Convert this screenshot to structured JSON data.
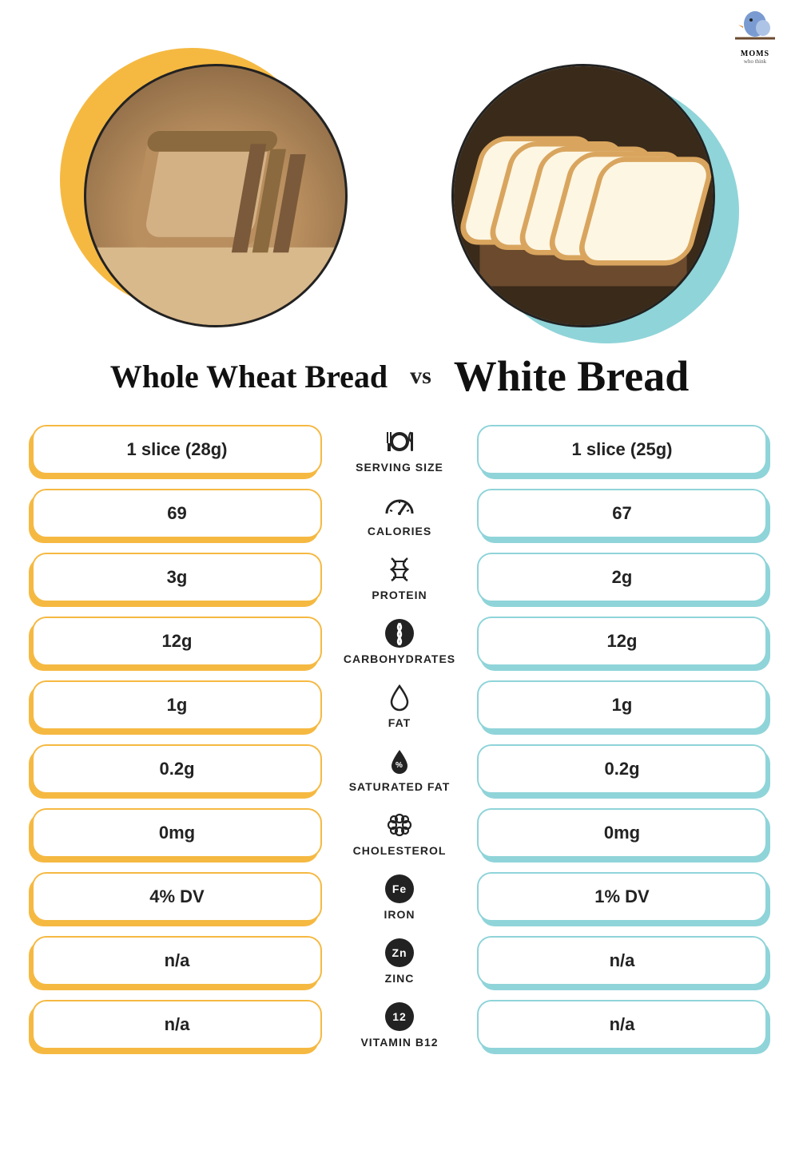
{
  "colors": {
    "left_accent": "#f5b942",
    "right_accent": "#8fd4d9",
    "text": "#222222",
    "background": "#ffffff"
  },
  "logo": {
    "brand": "MOMS",
    "tagline": "who think"
  },
  "titles": {
    "left": "Whole Wheat Bread",
    "vs": "vs",
    "right": "White Bread",
    "left_fontsize": 40,
    "right_fontsize": 54
  },
  "rows": [
    {
      "label": "SERVING SIZE",
      "icon": "plate",
      "left": "1 slice (28g)",
      "right": "1 slice (25g)"
    },
    {
      "label": "CALORIES",
      "icon": "gauge",
      "left": "69",
      "right": "67"
    },
    {
      "label": "PROTEIN",
      "icon": "dna",
      "left": "3g",
      "right": "2g"
    },
    {
      "label": "CARBOHYDRATES",
      "icon": "wheat-badge",
      "left": "12g",
      "right": "12g"
    },
    {
      "label": "FAT",
      "icon": "drop",
      "left": "1g",
      "right": "1g"
    },
    {
      "label": "SATURATED FAT",
      "icon": "drop-fill",
      "left": "0.2g",
      "right": "0.2g"
    },
    {
      "label": "CHOLESTEROL",
      "icon": "molecule",
      "left": "0mg",
      "right": "0mg"
    },
    {
      "label": "IRON",
      "icon": "badge-Fe",
      "left": "4% DV",
      "right": "1% DV"
    },
    {
      "label": "ZINC",
      "icon": "badge-Zn",
      "left": "n/a",
      "right": "n/a"
    },
    {
      "label": "VITAMIN B12",
      "icon": "badge-12",
      "left": "n/a",
      "right": "n/a"
    }
  ]
}
